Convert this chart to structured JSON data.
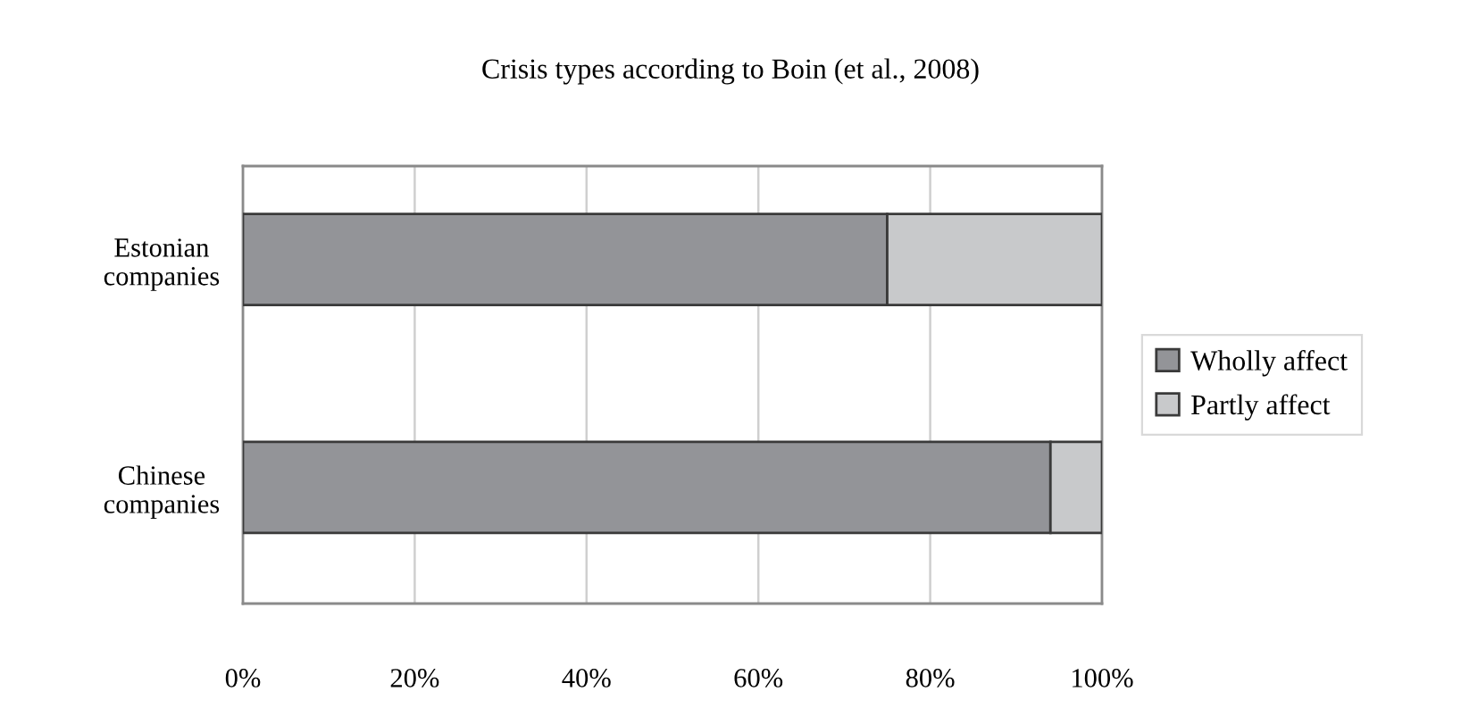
{
  "chart_data": {
    "type": "bar",
    "title": "Crisis types according to Boin (et al., 2008)",
    "orientation": "horizontal",
    "stacked": true,
    "categories": [
      "Estonian\ncompanies",
      "Chinese\ncompanies"
    ],
    "series": [
      {
        "name": "Wholly affect",
        "color": "#939498",
        "values": [
          75,
          94
        ]
      },
      {
        "name": "Partly affect",
        "color": "#c8c9cb",
        "values": [
          25,
          6
        ]
      }
    ],
    "xlim": [
      0,
      100
    ],
    "xticks": [
      {
        "value": 0,
        "label": "0%"
      },
      {
        "value": 20,
        "label": "20%"
      },
      {
        "value": 40,
        "label": "40%"
      },
      {
        "value": 60,
        "label": "60%"
      },
      {
        "value": 80,
        "label": "80%"
      },
      {
        "value": 100,
        "label": "100%"
      }
    ],
    "grid": "x",
    "legend": "right"
  }
}
